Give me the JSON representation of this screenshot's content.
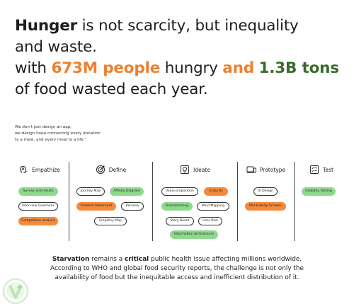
{
  "headline": {
    "l1_bold": "Hunger",
    "l1_rest": " is not scarcity, but inequality",
    "l2": "and waste.",
    "l3_a": "with ",
    "l3_people": "673M people",
    "l3_b": " hungry ",
    "l3_and": "and",
    "l3_c": " ",
    "l3_tons": "1.3B tons",
    "l4": "of food wasted each year."
  },
  "quote": {
    "line1": "We don’t just design an app,",
    "line2": "we design hope connecting every donation",
    "line3": "to a meal, and every meal to a life.”"
  },
  "process": [
    {
      "label": "Empathize",
      "icon": "head-icon",
      "items": [
        "Survey and results",
        "Interview Questions",
        "Competitive analysis"
      ]
    },
    {
      "label": "Define",
      "icon": "target-icon",
      "items": [
        "Journey Map",
        "Affinity Diagram",
        "Problem Statement",
        "Persona",
        "Empathy Map"
      ]
    },
    {
      "label": "Ideate",
      "icon": "lightbulb-icon",
      "items": [
        "Value proposition",
        "Crazy 8s",
        "Brainstorming",
        "Mind Mapping",
        "Story Board",
        "User flow",
        "Information Architecture"
      ]
    },
    {
      "label": "Prototype",
      "icon": "devices-icon",
      "items": [
        "UI Design",
        "Mid-Fidelity Screens"
      ]
    },
    {
      "label": "Test",
      "icon": "checklist-icon",
      "items": [
        "Usability Testing"
      ]
    }
  ],
  "bottom": {
    "w1": "Starvation",
    "t1": " remains a ",
    "w2": "critical",
    "t2": " public health issue affecting millions worldwide.",
    "line2": "According to WHO and global food security reports, the challenge is not only the",
    "line3": "availability of food but the inequitable access and inefficient distribution of it."
  },
  "colors": {
    "orange": "#f07f2e",
    "green": "#3a6a2a",
    "pill_green": "#8fd98f",
    "pill_orange": "#f48a3c"
  }
}
